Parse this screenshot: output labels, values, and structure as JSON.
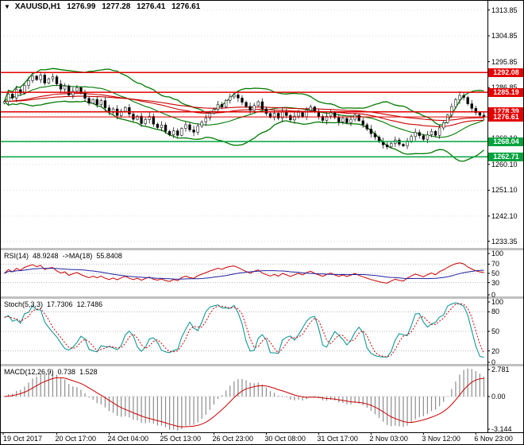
{
  "header": {
    "dropdown_icon": "▼",
    "symbol": "XAUUSD,H1",
    "open": "1276.99",
    "high": "1277.28",
    "low": "1276.41",
    "close": "1276.61"
  },
  "colors": {
    "background": "#ffffff",
    "candle_up": "#ffffff",
    "candle_down": "#000000",
    "candle_border": "#1a1a1a",
    "bollinger": "#007a00",
    "ma_red": "#cc0000",
    "resistance": "#e30000",
    "support": "#00a33e",
    "current_price": "#e30000",
    "rsi_line": "#cc0000",
    "rsi_ma": "#2020a0",
    "stoch_k": "#008f8f",
    "stoch_d": "#cc0000",
    "macd_hist": "#8c8c8c",
    "macd_signal": "#cc0000",
    "grid_dotted": "#b8b8b8",
    "separator": "#c0c0c0",
    "axis_text": "#000000"
  },
  "price_axis": {
    "ticks": [
      "1313.85",
      "1304.85",
      "1295.85",
      "1286.85",
      "1277.85",
      "1269.10",
      "1260.10",
      "1251.10",
      "1242.10",
      "1233.35"
    ]
  },
  "time_axis": {
    "labels": [
      "19 Oct 2017",
      "20 Oct 17:00",
      "24 Oct 04:00",
      "25 Oct 13:00",
      "26 Oct 23:00",
      "30 Oct 08:00",
      "31 Oct 17:00",
      "2 Nov 03:00",
      "3 Nov 12:00",
      "6 Nov 23:00"
    ]
  },
  "panes": {
    "rsi": {
      "title": "RSI(14)",
      "value": "48.9248",
      "ma_title": "->MA(18)",
      "ma_value": "55.8408",
      "axis_labels": [
        "100",
        "70",
        "50",
        "30",
        "0"
      ],
      "levels": [
        70,
        50,
        30
      ],
      "range": [
        0,
        100
      ]
    },
    "stoch": {
      "title": "Stoch(5,3,3)",
      "value": "17.7306",
      "signal_value": "12.7486",
      "axis_labels": [
        "100",
        "80",
        "50",
        "20",
        "0"
      ],
      "levels": [
        80,
        50,
        20
      ],
      "range": [
        0,
        100
      ]
    },
    "macd": {
      "title": "MACD(12,26,9)",
      "value": "0.738",
      "signal_value": "1.528",
      "axis_labels": [
        "2.781",
        "0.00",
        "-3.144"
      ],
      "max": 2.781,
      "min": -3.144
    }
  },
  "chart_data": {
    "type": "candlestick",
    "title": "XAUUSD,H1",
    "timeframe": "H1",
    "current_ohlc": {
      "open": 1276.99,
      "high": 1277.28,
      "low": 1276.41,
      "close": 1276.61
    },
    "y_min": 1231.0,
    "y_max": 1316.5,
    "closes": [
      1282.0,
      1284.6,
      1283.2,
      1286.1,
      1284.9,
      1287.6,
      1289.3,
      1290.8,
      1289.6,
      1291.2,
      1288.4,
      1289.9,
      1290.6,
      1288.1,
      1286.3,
      1287.4,
      1284.2,
      1285.6,
      1286.8,
      1284.9,
      1283.1,
      1281.4,
      1282.7,
      1280.9,
      1282.3,
      1279.8,
      1278.2,
      1279.4,
      1277.1,
      1278.6,
      1279.9,
      1277.6,
      1275.8,
      1276.9,
      1274.3,
      1275.7,
      1276.8,
      1274.1,
      1272.9,
      1273.8,
      1271.6,
      1270.4,
      1271.8,
      1270.2,
      1272.6,
      1273.9,
      1272.1,
      1271.3,
      1273.4,
      1274.8,
      1276.2,
      1277.9,
      1279.3,
      1281.0,
      1280.1,
      1282.4,
      1283.6,
      1284.3,
      1283.2,
      1281.7,
      1280.3,
      1278.9,
      1280.6,
      1281.9,
      1279.4,
      1277.8,
      1276.5,
      1277.9,
      1276.2,
      1278.4,
      1277.1,
      1275.6,
      1276.9,
      1278.2,
      1276.7,
      1278.9,
      1280.1,
      1278.3,
      1276.8,
      1275.4,
      1276.9,
      1278.1,
      1276.4,
      1274.9,
      1276.1,
      1274.6,
      1275.8,
      1277.2,
      1275.3,
      1273.9,
      1272.4,
      1270.8,
      1269.6,
      1268.1,
      1266.9,
      1266.2,
      1267.4,
      1268.6,
      1267.1,
      1266.5,
      1268.2,
      1269.8,
      1271.2,
      1270.1,
      1268.8,
      1270.4,
      1271.6,
      1270.2,
      1272.8,
      1274.6,
      1277.3,
      1280.2,
      1282.6,
      1284.1,
      1283.4,
      1281.2,
      1279.6,
      1278.1,
      1277.2,
      1276.6
    ],
    "hlines": [
      {
        "label": "1292.08",
        "value": 1292.08,
        "kind": "resistance"
      },
      {
        "label": "1285.19",
        "value": 1285.19,
        "kind": "resistance"
      },
      {
        "label": "1278.39",
        "value": 1278.39,
        "kind": "resistance"
      },
      {
        "label": "1276.61",
        "value": 1276.61,
        "kind": "current"
      },
      {
        "label": "1268.04",
        "value": 1268.04,
        "kind": "support"
      },
      {
        "label": "1262.71",
        "value": 1262.71,
        "kind": "support"
      }
    ],
    "indicators": {
      "bollinger": {
        "period": 20,
        "deviation": 2
      },
      "moving_averages": [
        {
          "period": 50
        },
        {
          "period": 90
        }
      ],
      "rsi": {
        "period": 14,
        "value": 48.9248,
        "ma_period": 18,
        "ma_value": 55.8408
      },
      "stochastic": {
        "k": 5,
        "d": 3,
        "slowing": 3,
        "value": 17.7306,
        "signal": 12.7486
      },
      "macd": {
        "fast": 12,
        "slow": 26,
        "signal": 9,
        "value": 0.738,
        "signal_value": 1.528
      }
    }
  }
}
